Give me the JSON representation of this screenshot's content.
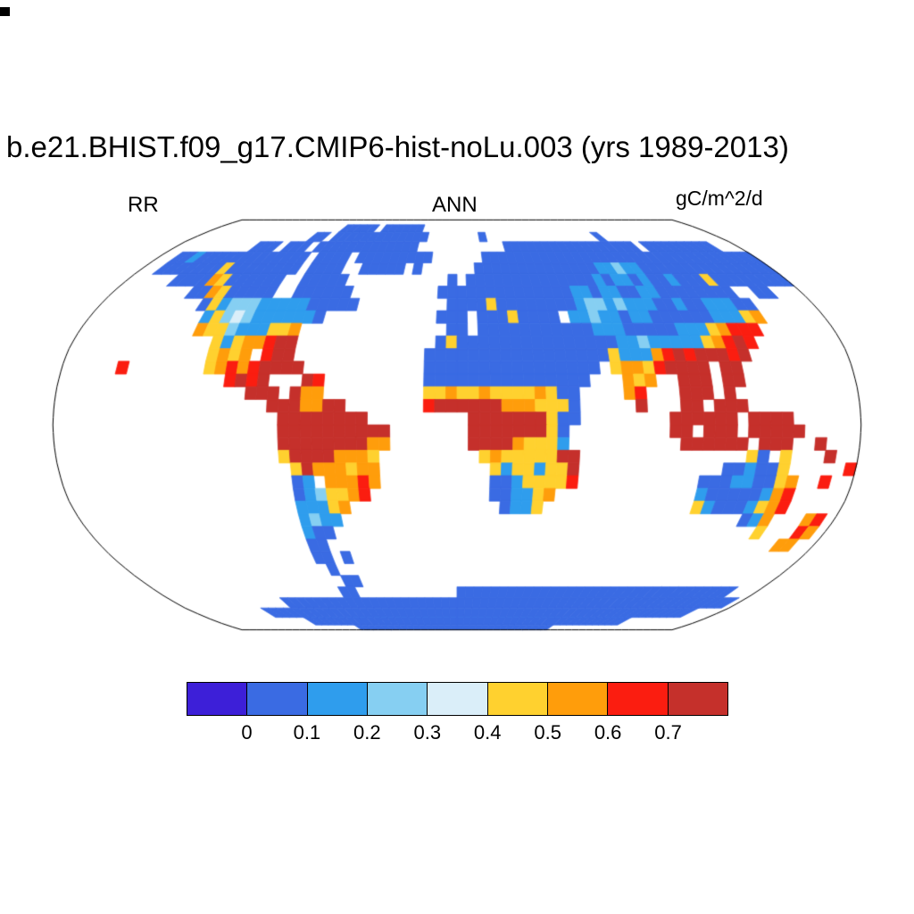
{
  "title": "b.e21.BHIST.f09_g17.CMIP6-hist-noLu.003 (yrs 1989-2013)",
  "subheader": {
    "left": "RR",
    "center": "ANN",
    "right": "gC/m^2/d"
  },
  "colorbar": {
    "tick_labels": [
      "0",
      "0.1",
      "0.2",
      "0.3",
      "0.4",
      "0.5",
      "0.6",
      "0.7"
    ]
  },
  "chart_data": {
    "type": "heatmap",
    "title": "b.e21.BHIST.f09_g17.CMIP6-hist-noLu.003 (yrs 1989-2013)",
    "variable": "RR",
    "statistic": "ANN",
    "units": "gC/m^2/d",
    "projection": "robinson",
    "levels": [
      0,
      0.1,
      0.2,
      0.3,
      0.4,
      0.5,
      0.6,
      0.7
    ],
    "palette": [
      "#3d1fd8",
      "#3a6be3",
      "#2f9ded",
      "#86cff2",
      "#daeef9",
      "#ffd12f",
      "#ff9d0b",
      "#fb1d10",
      "#c5302b"
    ],
    "palette_bins": [
      "< 0",
      "0-0.1",
      "0.1-0.2",
      "0.2-0.3",
      "0.3-0.4",
      "0.4-0.5",
      "0.5-0.6",
      "0.6-0.7",
      "> 0.7"
    ],
    "grid": {
      "legend": "36 rows x 72 cols of 5-degree cells, row 0 = 90N-85N, col 0 = 180W-175W; '.' = ocean/no data; digit = palette bin index",
      "cell_deg": 5,
      "lat_start": 90,
      "lon_start": -180,
      "ncols": 72,
      "nrows": 36,
      "rows": [
        [
          "............",
          "............",
          "............",
          "............",
          "............",
          "............"
        ],
        [
          "............",
          ".......11111",
          ".111111.....",
          "............",
          "............",
          "............"
        ],
        [
          "............",
          "....11.11111",
          "11111111....",
          "...1........",
          ".......1....",
          "............"
        ],
        [
          "..........11",
          "1.111.111111",
          "1111111.....",
          "......111111",
          "11111111111.",
          "111111111..."
        ],
        [
          "..1121111111",
          "111111.1111.",
          "111111111...",
          "...111111111",
          "111111111111",
          "111111111111"
        ],
        [
          "..1111111511",
          "111111.1111.",
          ".11111.1....",
          "..1111111111",
          "111122322111",
          "111111111111"
        ],
        [
          ".....1111651",
          "11111..11111",
          "...........1",
          ".11111111111",
          "111212212112",
          "111511111111"
        ],
        [
          "........1165",
          "11111..11111",
          "1.........11",
          "111111111111",
          "221221122111",
          "11111..11..."
        ],
        [
          "..........15",
          "233322222111",
          "11.........1",
          "111511111111",
          "233232221121",
          "122211......"
        ],
        [
          "...........2",
          "53432222221.",
          "..........11",
          "1.11151111.2",
          "232212211111",
          "122256......"
        ],
        [
          "...........6",
          "553222556...",
          "...........1",
          "1.1111111111",
          "122211111222",
          "56777......."
        ],
        [
          "............",
          ".52566788...",
          "..........15",
          "111111111111",
          "111223222225",
          "6787........"
        ],
        [
          "............",
          ".5656.788...",
          ".........111",
          "111111111111",
          "115222678788",
          "878........."
        ],
        [
          ".....7......",
          ".567678888..",
          ".........111",
          "111111111111",
          "1.566578888.",
          "88.........."
        ],
        [
          "............",
          "...7878...87",
          ".........111",
          "111111111111",
          "...656..888.",
          "88.........."
        ],
        [
          "............",
          ".....888.866",
          ".........556",
          "55655556511.",
          "...67...888.",
          "8..........."
        ],
        [
          "............",
          ".......88866",
          "88.......788",
          "88886665551.",
          "....8...88.8",
          "88.........."
        ],
        [
          "............",
          "........8888",
          "8888........",
          ".8888888511.",
          ".......88888",
          "8.8888......"
        ],
        [
          "............",
          "........8888",
          "888888......",
          ".888888851..",
          ".......88.88",
          "8.88888....."
        ],
        [
          "............",
          "........8888",
          "888866......",
          ".888865552..",
          "........8888",
          "88.888..8..."
        ],
        [
          "............",
          "........5888",
          "86665.......",
          "..565555588.",
          "............",
          "..51.5...8.."
        ],
        [
          "............",
          ".........586",
          "66566.......",
          "...52552558.",
          "............",
          "112115.....7"
        ],
        [
          "............",
          ".........12.",
          "66676.......",
          "...11255557.",
          "..........11",
          "1221156..7.."
        ],
        [
          "............",
          ".........123",
          "5567........",
          "...112256...",
          "..........21",
          "1111267....."
        ],
        [
          "............",
          ".........222",
          "56..........",
          "....1225....",
          "..........52",
          "1112567....."
        ],
        [
          "............",
          ".........232",
          "2...........",
          "............",
          "............",
          "...126...67."
        ],
        [
          "............",
          ".........211",
          "............",
          "............",
          "............",
          ".....5...76."
        ],
        [
          "............",
          ".........11.",
          "............",
          "............",
          "............",
          "........66.."
        ],
        [
          "............",
          ".........11.",
          "1...........",
          "............",
          "............",
          "............"
        ],
        [
          "............",
          "..........1.",
          "............",
          "............",
          "............",
          "............"
        ],
        [
          "............",
          "...........1",
          "1...........",
          "............",
          "............",
          "............"
        ],
        [
          "............",
          "..........11",
          "............",
          "111111111111",
          "111111111111",
          "111111111..."
        ],
        [
          "............",
          "..1111111111",
          "111111111111",
          "111111111111",
          "111111111111",
          "11111111111."
        ],
        [
          "..........11",
          "111111111111",
          "111111111111",
          "111111111111",
          "111111111111",
          "11111111...."
        ],
        [
          "............",
          "..1111111111",
          "111111111111",
          "111111111111",
          "111111111111",
          "1..........."
        ],
        [
          "............",
          "........1111",
          "111111111111",
          "111111111111",
          "111.........",
          "............"
        ]
      ]
    }
  }
}
